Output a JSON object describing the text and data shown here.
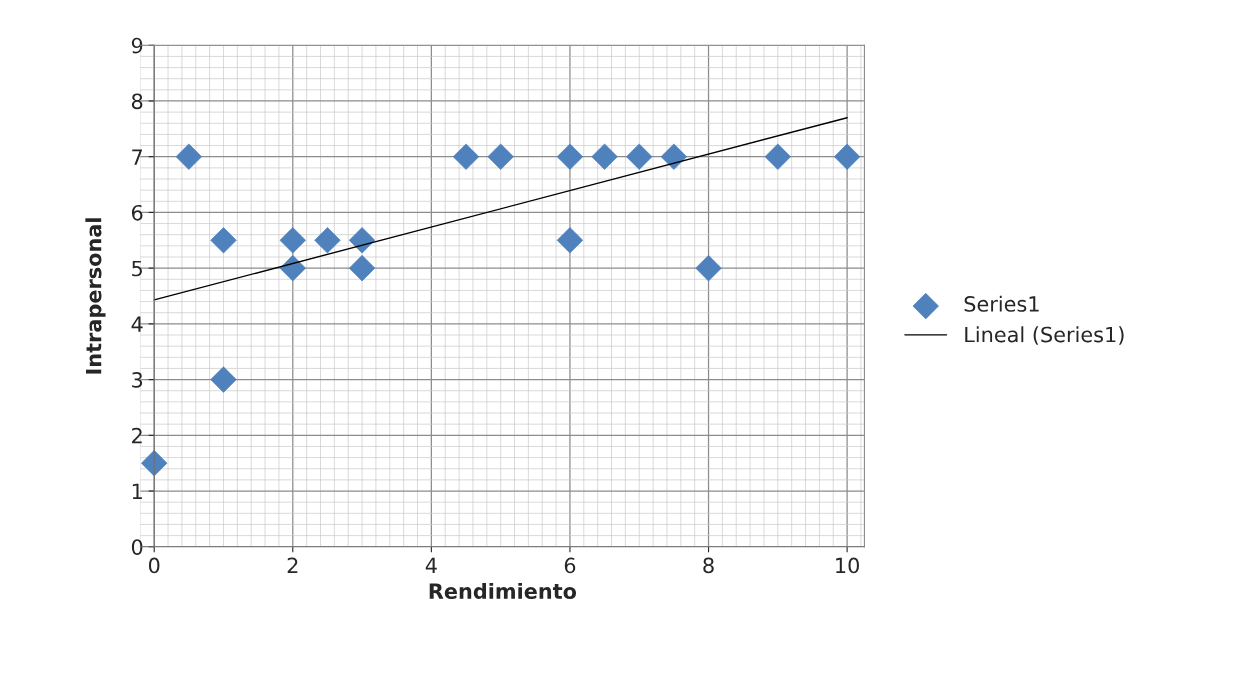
{
  "chart_data": {
    "type": "scatter",
    "xlabel": "Rendimiento",
    "ylabel": "Intrapersonal",
    "x": [
      0,
      0.5,
      1,
      1,
      2,
      2,
      2.5,
      3,
      3,
      4.5,
      5,
      6,
      6,
      6.5,
      7,
      7.5,
      8,
      9,
      10
    ],
    "series": [
      {
        "name": "Series1",
        "color": "#4f81bd",
        "marker": "diamond",
        "values": [
          1.5,
          7,
          5.5,
          3,
          5.5,
          5,
          5.5,
          5.5,
          5,
          7,
          7,
          7,
          5.5,
          7,
          7,
          7,
          5,
          7,
          7
        ]
      },
      {
        "name": "Lineal (Series1)",
        "color": "#000000",
        "type": "line",
        "line_style": "solid",
        "marker": "none",
        "x": [
          0,
          10
        ],
        "values": [
          4.43,
          7.7
        ]
      }
    ],
    "xlim": [
      -0.2,
      10.25
    ],
    "xticks": [
      0,
      2,
      4,
      6,
      8,
      10
    ],
    "ylim": [
      0,
      9
    ],
    "yticks": [
      0,
      1,
      2,
      3,
      4,
      5,
      6,
      7,
      8,
      9
    ],
    "grid": true,
    "legend": "right"
  }
}
